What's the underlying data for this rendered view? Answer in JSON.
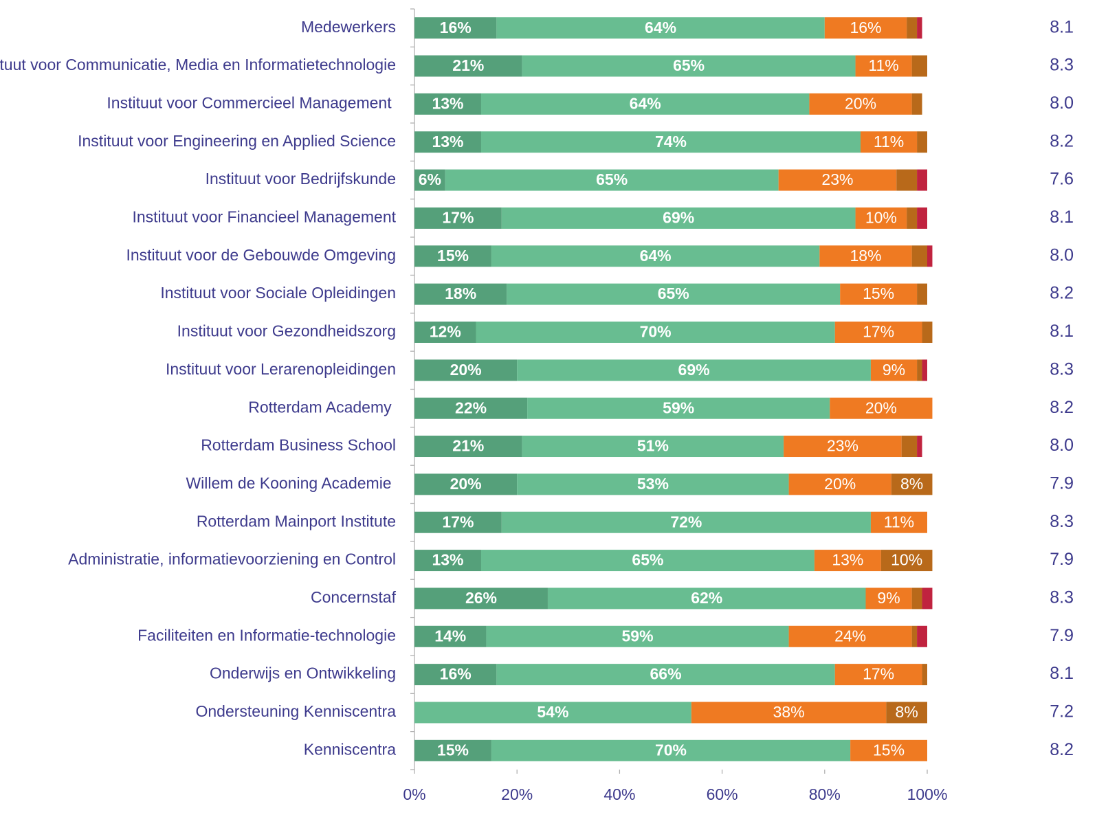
{
  "chart_data": {
    "type": "stacked_bar_horizontal",
    "categories": [
      "Medewerkers",
      "Instituut voor Communicatie, Media en Informatietechnologie",
      "Instituut voor Commercieel Management ",
      "Instituut voor Engineering en Applied Science",
      "Instituut voor Bedrijfskunde",
      "Instituut voor Financieel Management",
      "Instituut voor de Gebouwde Omgeving",
      "Instituut voor Sociale Opleidingen",
      "Instituut voor Gezondheidszorg",
      "Instituut voor Lerarenopleidingen",
      "Rotterdam Academy ",
      "Rotterdam Business School",
      "Willem de Kooning Academie ",
      "Rotterdam Mainport Institute",
      "Administratie, informatievoorziening en Control",
      "Concernstaf",
      "Faciliteiten en Informatie-technologie",
      "Onderwijs en Ontwikkeling",
      "Ondersteuning Kenniscentra",
      "Kenniscentra"
    ],
    "series": [
      {
        "color": "#55a07a",
        "bold": true,
        "values": [
          16,
          21,
          13,
          13,
          6,
          17,
          15,
          18,
          12,
          20,
          22,
          21,
          20,
          17,
          13,
          26,
          14,
          16,
          0,
          15
        ],
        "value_labels": [
          "16%",
          "21%",
          "13%",
          "13%",
          "6%",
          "17%",
          "15%",
          "18%",
          "12%",
          "20%",
          "22%",
          "21%",
          "20%",
          "17%",
          "13%",
          "26%",
          "14%",
          "16%",
          null,
          "15%"
        ]
      },
      {
        "color": "#68bd91",
        "bold": true,
        "values": [
          64,
          65,
          64,
          74,
          65,
          69,
          64,
          65,
          70,
          69,
          59,
          51,
          53,
          72,
          65,
          62,
          59,
          66,
          54,
          70
        ],
        "value_labels": [
          "64%",
          "65%",
          "64%",
          "74%",
          "65%",
          "69%",
          "64%",
          "65%",
          "70%",
          "69%",
          "59%",
          "51%",
          "53%",
          "72%",
          "65%",
          "62%",
          "59%",
          "66%",
          "54%",
          "70%"
        ]
      },
      {
        "color": "#ef7a22",
        "bold": false,
        "values": [
          16,
          11,
          20,
          11,
          23,
          10,
          18,
          15,
          17,
          9,
          20,
          23,
          20,
          11,
          13,
          9,
          24,
          17,
          38,
          15
        ],
        "value_labels": [
          "16%",
          "11%",
          "20%",
          "11%",
          "23%",
          "10%",
          "18%",
          "15%",
          "17%",
          "9%",
          "20%",
          "23%",
          "20%",
          "11%",
          "13%",
          "9%",
          "24%",
          "17%",
          "38%",
          "15%"
        ]
      },
      {
        "color": "#b8691a",
        "bold": false,
        "values": [
          2,
          3,
          2,
          2,
          4,
          2,
          3,
          2,
          2,
          1,
          0,
          3,
          8,
          0,
          10,
          2,
          1,
          1,
          8,
          0
        ],
        "value_labels": [
          null,
          null,
          null,
          null,
          null,
          null,
          null,
          null,
          null,
          null,
          null,
          null,
          "8%",
          null,
          "10%",
          null,
          null,
          null,
          "8%",
          null
        ]
      },
      {
        "color": "#c0233f",
        "bold": false,
        "values": [
          1,
          0,
          0,
          0,
          2,
          2,
          1,
          0,
          0,
          1,
          0,
          1,
          0,
          0,
          0,
          2,
          2,
          0,
          0,
          0
        ],
        "value_labels": [
          null,
          null,
          null,
          null,
          null,
          null,
          null,
          null,
          null,
          null,
          null,
          null,
          null,
          null,
          null,
          null,
          null,
          null,
          null,
          null
        ]
      }
    ],
    "scores": [
      8.1,
      8.3,
      8.0,
      8.2,
      7.6,
      8.1,
      8.0,
      8.2,
      8.1,
      8.3,
      8.2,
      8.0,
      7.9,
      8.3,
      7.9,
      8.3,
      7.9,
      8.1,
      7.2,
      8.2
    ],
    "score_labels": [
      "8.1",
      "8.3",
      "8.0",
      "8.2",
      "7.6",
      "8.1",
      "8.0",
      "8.2",
      "8.1",
      "8.3",
      "8.2",
      "8.0",
      "7.9",
      "8.3",
      "7.9",
      "8.3",
      "7.9",
      "8.1",
      "7.2",
      "8.2"
    ],
    "xlim": [
      0,
      100
    ],
    "xticks": [
      {
        "value": 0,
        "label": "0%"
      },
      {
        "value": 20,
        "label": "20%"
      },
      {
        "value": 40,
        "label": "40%"
      },
      {
        "value": 60,
        "label": "60%"
      },
      {
        "value": 80,
        "label": "80%"
      },
      {
        "value": 100,
        "label": "100%"
      }
    ]
  }
}
